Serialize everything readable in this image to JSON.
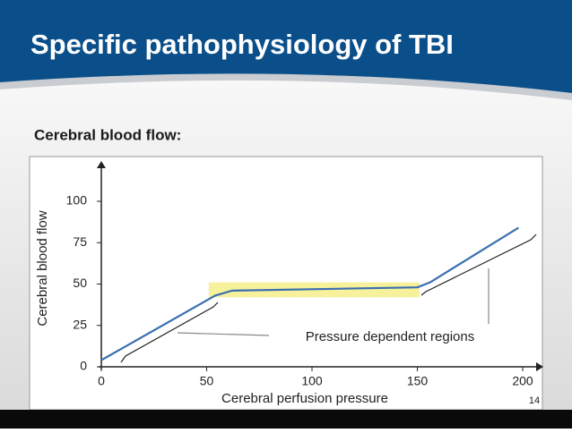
{
  "slide": {
    "title": "Specific pathophysiology of TBI",
    "subtitle": "Cerebral blood flow:",
    "page_number": "14"
  },
  "chart_data": {
    "type": "line",
    "x": [
      0,
      54,
      62,
      150,
      156,
      198
    ],
    "values": [
      4,
      43,
      46,
      48,
      51,
      84
    ],
    "color": "#3a6fb0",
    "x_label": "Cerebral perfusion pressure",
    "y_label": "Cerebral blood flow",
    "annotation": "Pressure dependent regions",
    "highlight": {
      "x": [
        51,
        151
      ],
      "y": [
        42,
        51
      ],
      "color": "#f7f19c"
    },
    "xlim": [
      0,
      200
    ],
    "xticks": [
      0,
      50,
      100,
      150,
      200
    ],
    "ylim": [
      0,
      100
    ],
    "yticks": [
      0,
      25,
      50,
      75,
      100
    ],
    "grid": false
  }
}
